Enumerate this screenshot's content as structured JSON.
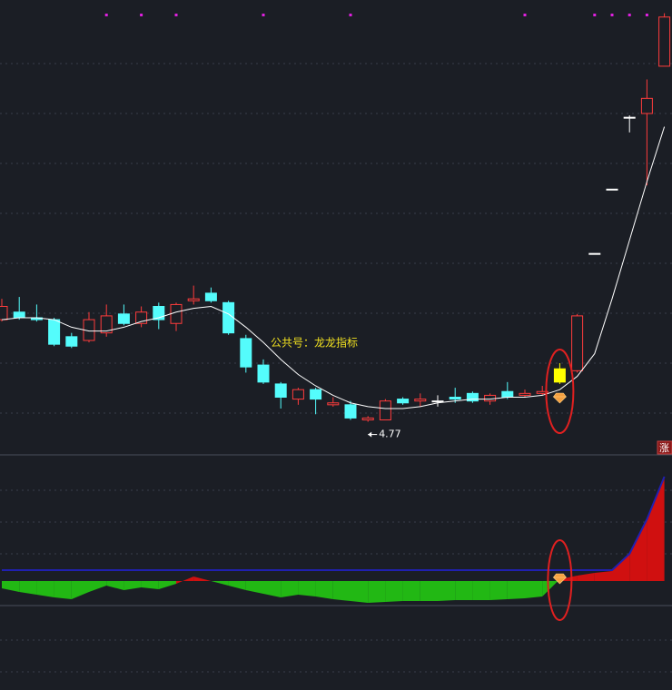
{
  "chart_data": [
    {
      "type": "candlestick",
      "annotation": "公共号：龙龙指标",
      "low_label": 4.77,
      "tag": "涨",
      "ylim": [
        4.6,
        7.0
      ],
      "open": [
        5.31,
        5.35,
        5.32,
        5.31,
        5.22,
        5.2,
        5.24,
        5.34,
        5.29,
        5.38,
        5.29,
        5.41,
        5.45,
        5.4,
        5.21,
        5.07,
        4.97,
        4.89,
        4.94,
        4.86,
        4.86,
        4.78,
        4.78,
        4.89,
        4.88,
        4.88,
        4.9,
        4.92,
        4.88,
        4.93,
        4.91,
        4.92,
        4.98,
        5.04,
        5.66,
        6.0,
        6.38,
        6.4,
        6.65
      ],
      "close": [
        5.38,
        5.32,
        5.31,
        5.18,
        5.17,
        5.31,
        5.33,
        5.29,
        5.35,
        5.31,
        5.39,
        5.42,
        5.41,
        5.24,
        5.06,
        4.98,
        4.9,
        4.94,
        4.89,
        4.87,
        4.79,
        4.79,
        4.88,
        4.87,
        4.89,
        4.88,
        4.89,
        4.88,
        4.91,
        4.9,
        4.92,
        4.93,
        5.05,
        5.33,
        5.66,
        6.0,
        6.38,
        6.48,
        6.91
      ],
      "high": [
        5.42,
        5.43,
        5.39,
        5.32,
        5.24,
        5.35,
        5.39,
        5.39,
        5.38,
        5.4,
        5.4,
        5.49,
        5.48,
        5.41,
        5.23,
        5.1,
        4.98,
        4.95,
        4.95,
        4.9,
        4.88,
        4.8,
        4.89,
        4.9,
        4.92,
        4.91,
        4.95,
        4.93,
        4.92,
        4.98,
        4.94,
        4.96,
        5.08,
        5.34,
        5.66,
        6.0,
        6.39,
        6.58,
        6.93
      ],
      "low": [
        5.3,
        5.31,
        5.3,
        5.17,
        5.16,
        5.19,
        5.22,
        5.28,
        5.27,
        5.26,
        5.25,
        5.39,
        5.4,
        5.23,
        5.03,
        4.97,
        4.84,
        4.86,
        4.81,
        4.85,
        4.78,
        4.77,
        4.78,
        4.86,
        4.85,
        4.85,
        4.87,
        4.87,
        4.86,
        4.89,
        4.9,
        4.91,
        4.97,
        5.03,
        5.66,
        6.0,
        6.3,
        6.02,
        6.65
      ],
      "colors": [
        "#ff3c3c",
        "#54fcfc",
        "#54fcfc",
        "#54fcfc",
        "#54fcfc",
        "#ff3c3c",
        "#ff3c3c",
        "#54fcfc",
        "#ff3c3c",
        "#54fcfc",
        "#ff3c3c",
        "#ff3c3c",
        "#54fcfc",
        "#54fcfc",
        "#54fcfc",
        "#54fcfc",
        "#54fcfc",
        "#ff3c3c",
        "#54fcfc",
        "#ff3c3c",
        "#54fcfc",
        "#ff3c3c",
        "#ff3c3c",
        "#54fcfc",
        "#ff3c3c",
        "#ffffff",
        "#54fcfc",
        "#54fcfc",
        "#ff3c3c",
        "#54fcfc",
        "#ff3c3c",
        "#ff3c3c",
        "#ffff00",
        "#ff3c3c",
        "#ffffff",
        "#ffffff",
        "#ffffff",
        "#ff3c3c",
        "#ff3c3c"
      ],
      "ma": [
        5.31,
        5.32,
        5.32,
        5.31,
        5.27,
        5.25,
        5.25,
        5.27,
        5.3,
        5.32,
        5.35,
        5.37,
        5.38,
        5.34,
        5.27,
        5.19,
        5.1,
        5.02,
        4.96,
        4.91,
        4.87,
        4.85,
        4.84,
        4.84,
        4.85,
        4.87,
        4.88,
        4.89,
        4.89,
        4.9,
        4.9,
        4.91,
        4.94,
        5.01,
        5.13,
        5.42,
        5.73,
        6.04,
        6.33
      ],
      "ma_color": "#ffffff",
      "signals": [
        6,
        8,
        10,
        15,
        20,
        30,
        34,
        35,
        36,
        37
      ],
      "signal_color": "#e020e0",
      "highlight_index": 32
    },
    {
      "type": "area",
      "ylim": [
        -6,
        7
      ],
      "osc": [
        -0.4,
        -0.6,
        -0.75,
        -0.9,
        -1.0,
        -0.6,
        -0.25,
        -0.5,
        -0.35,
        -0.45,
        -0.15,
        0.25,
        0,
        -0.25,
        -0.5,
        -0.7,
        -0.9,
        -0.75,
        -0.85,
        -1.0,
        -1.1,
        -1.2,
        -1.15,
        -1.1,
        -1.1,
        -1.1,
        -1.05,
        -1.05,
        -1.05,
        -1.0,
        -0.95,
        -0.85,
        0.1,
        0.3,
        0.45,
        0.55,
        1.5,
        3.4,
        5.75
      ],
      "pos_color": "#d01010",
      "neg_color": "#22b814",
      "line": [
        0.6,
        0.6,
        0.6,
        0.6,
        0.6,
        0.6,
        0.6,
        0.6,
        0.6,
        0.6,
        0.6,
        0.6,
        0.6,
        0.6,
        0.6,
        0.6,
        0.6,
        0.6,
        0.6,
        0.6,
        0.6,
        0.6,
        0.6,
        0.6,
        0.6,
        0.6,
        0.6,
        0.6,
        0.6,
        0.6,
        0.6,
        0.6,
        0.6,
        0.6,
        0.6,
        0.6,
        1.5,
        3.4,
        5.75
      ],
      "line_color": "#2020b0"
    }
  ]
}
